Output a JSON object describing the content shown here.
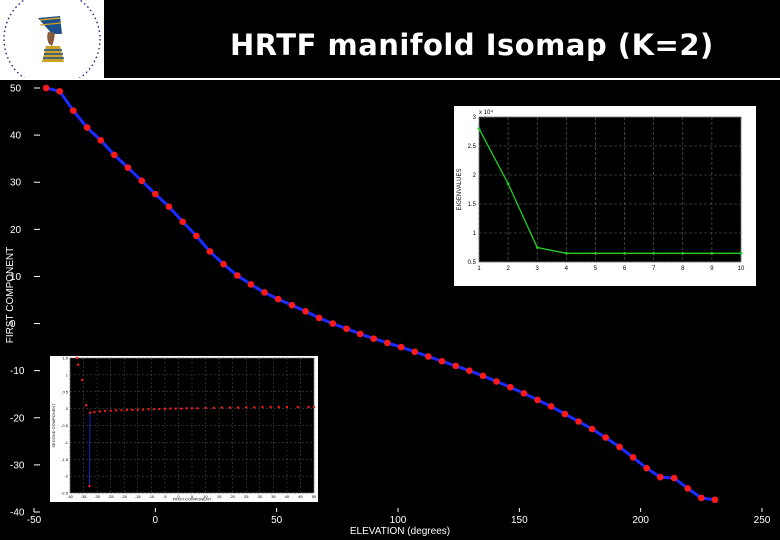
{
  "slide": {
    "title": "HRTF manifold Isomap (K=2)",
    "logo_icon": "nefertiti-bust-logo"
  },
  "chart_data": [
    {
      "type": "scatter",
      "title": "",
      "xlabel": "ELEVATION (degrees)",
      "ylabel": "FIRST COMPONENT",
      "xlim": [
        -50,
        250
      ],
      "ylim": [
        -40,
        50
      ],
      "xticks": [
        -50,
        0,
        50,
        100,
        150,
        200,
        250
      ],
      "yticks": [
        -40,
        -30,
        -20,
        -10,
        0,
        10,
        20,
        30,
        40,
        50
      ],
      "xtick_labels": [
        "-50",
        "0",
        "50",
        "100",
        "150",
        "200",
        "250"
      ],
      "ytick_labels": [
        "-40",
        "-30",
        "-20",
        "-10",
        "0",
        "10",
        "20",
        "30",
        "40",
        "50"
      ],
      "line_color": "#1a2cff",
      "marker_color": "#ff1a1a",
      "points": [
        [
          -45,
          50.0
        ],
        [
          -39.4,
          49.3
        ],
        [
          -33.8,
          45.2
        ],
        [
          -28.1,
          41.6
        ],
        [
          -22.5,
          38.9
        ],
        [
          -16.9,
          35.8
        ],
        [
          -11.3,
          33.1
        ],
        [
          -5.6,
          30.3
        ],
        [
          0,
          27.5
        ],
        [
          5.6,
          24.8
        ],
        [
          11.3,
          21.6
        ],
        [
          16.9,
          18.6
        ],
        [
          22.5,
          15.3
        ],
        [
          28.1,
          12.6
        ],
        [
          33.8,
          10.2
        ],
        [
          39.4,
          8.3
        ],
        [
          45,
          6.6
        ],
        [
          50.6,
          5.2
        ],
        [
          56.3,
          3.9
        ],
        [
          61.9,
          2.6
        ],
        [
          67.5,
          1.2
        ],
        [
          73.1,
          0.0
        ],
        [
          78.8,
          -1.1
        ],
        [
          84.4,
          -2.2
        ],
        [
          90,
          -3.2
        ],
        [
          95.6,
          -4.1
        ],
        [
          101.3,
          -5.0
        ],
        [
          106.9,
          -6.0
        ],
        [
          112.5,
          -7.0
        ],
        [
          118.1,
          -8.0
        ],
        [
          123.8,
          -9.0
        ],
        [
          129.4,
          -10.0
        ],
        [
          135,
          -11.1
        ],
        [
          140.6,
          -12.3
        ],
        [
          146.3,
          -13.5
        ],
        [
          151.9,
          -14.8
        ],
        [
          157.5,
          -16.2
        ],
        [
          163.1,
          -17.6
        ],
        [
          168.8,
          -19.2
        ],
        [
          174.4,
          -20.8
        ],
        [
          180,
          -22.4
        ],
        [
          185.6,
          -24.2
        ],
        [
          191.3,
          -26.2
        ],
        [
          196.9,
          -28.4
        ],
        [
          202.5,
          -30.7
        ],
        [
          208.1,
          -32.6
        ],
        [
          213.8,
          -32.8
        ],
        [
          219.4,
          -35.0
        ],
        [
          225,
          -37.0
        ],
        [
          230.6,
          -37.4
        ]
      ]
    },
    {
      "type": "line",
      "title": "",
      "xlabel": "",
      "ylabel": "EIGENVALUES",
      "exponent_label": "x 10⁴",
      "xlim": [
        1,
        10
      ],
      "ylim": [
        0.5,
        3
      ],
      "xticks": [
        1,
        2,
        3,
        4,
        5,
        6,
        7,
        8,
        9,
        10
      ],
      "yticks": [
        0.5,
        1,
        1.5,
        2,
        2.5,
        3
      ],
      "xtick_labels": [
        "1",
        "2",
        "3",
        "4",
        "5",
        "6",
        "7",
        "8",
        "9",
        "10"
      ],
      "ytick_labels": [
        "0.5",
        "1",
        "1.5",
        "2",
        "2.5",
        "3"
      ],
      "line_color": "#22cc22",
      "x": [
        1,
        2,
        3,
        4,
        5,
        6,
        7,
        8,
        9,
        10
      ],
      "values": [
        2.8,
        1.85,
        0.75,
        0.65,
        0.65,
        0.65,
        0.65,
        0.65,
        0.65,
        0.65
      ]
    },
    {
      "type": "scatter",
      "title": "",
      "xlabel": "FIRST COMPONENT",
      "ylabel": "SECOND COMPONENT",
      "xlim": [
        -40,
        50
      ],
      "ylim": [
        -2.5,
        1.5
      ],
      "xticks": [
        -40,
        -35,
        -30,
        -25,
        -20,
        -15,
        -10,
        -5,
        0,
        5,
        10,
        15,
        20,
        25,
        30,
        35,
        40,
        45,
        50
      ],
      "yticks": [
        -2.5,
        -2,
        -1.5,
        -1,
        -0.5,
        0,
        0.5,
        1,
        1.5
      ],
      "xtick_labels": [
        "-40",
        "-35",
        "-30",
        "-25",
        "-20",
        "-15",
        "-10",
        "-5",
        "0",
        "5",
        "10",
        "15",
        "20",
        "25",
        "30",
        "35",
        "40",
        "45",
        "50"
      ],
      "ytick_labels": [
        "-2.5",
        "-2",
        "-1.5",
        "-1",
        "-0.5",
        "0",
        "0.5",
        "1",
        "1.5"
      ],
      "marker_color": "#ff1a1a",
      "line_color": "#1a2cff",
      "points": [
        [
          -37.4,
          1.5
        ],
        [
          -37,
          1.3
        ],
        [
          -35.5,
          0.85
        ],
        [
          -34,
          0.1
        ],
        [
          -32.8,
          -2.3
        ],
        [
          -32.6,
          -0.12
        ],
        [
          -31,
          -0.1
        ],
        [
          -29,
          -0.08
        ],
        [
          -27,
          -0.07
        ],
        [
          -25,
          -0.06
        ],
        [
          -23,
          -0.05
        ],
        [
          -21,
          -0.05
        ],
        [
          -19,
          -0.04
        ],
        [
          -17,
          -0.04
        ],
        [
          -15,
          -0.03
        ],
        [
          -13,
          -0.03
        ],
        [
          -11,
          -0.02
        ],
        [
          -9,
          -0.02
        ],
        [
          -7,
          -0.01
        ],
        [
          -5,
          -0.01
        ],
        [
          -3,
          0.0
        ],
        [
          -1,
          0.0
        ],
        [
          1,
          0.0
        ],
        [
          3,
          0.01
        ],
        [
          5,
          0.01
        ],
        [
          7,
          0.01
        ],
        [
          10,
          0.02
        ],
        [
          13,
          0.02
        ],
        [
          16,
          0.03
        ],
        [
          19,
          0.03
        ],
        [
          22,
          0.03
        ],
        [
          25,
          0.04
        ],
        [
          28,
          0.04
        ],
        [
          31,
          0.05
        ],
        [
          34,
          0.05
        ],
        [
          37,
          0.05
        ],
        [
          40,
          0.05
        ],
        [
          44,
          0.05
        ],
        [
          48,
          0.05
        ],
        [
          50,
          0.05
        ]
      ]
    }
  ]
}
